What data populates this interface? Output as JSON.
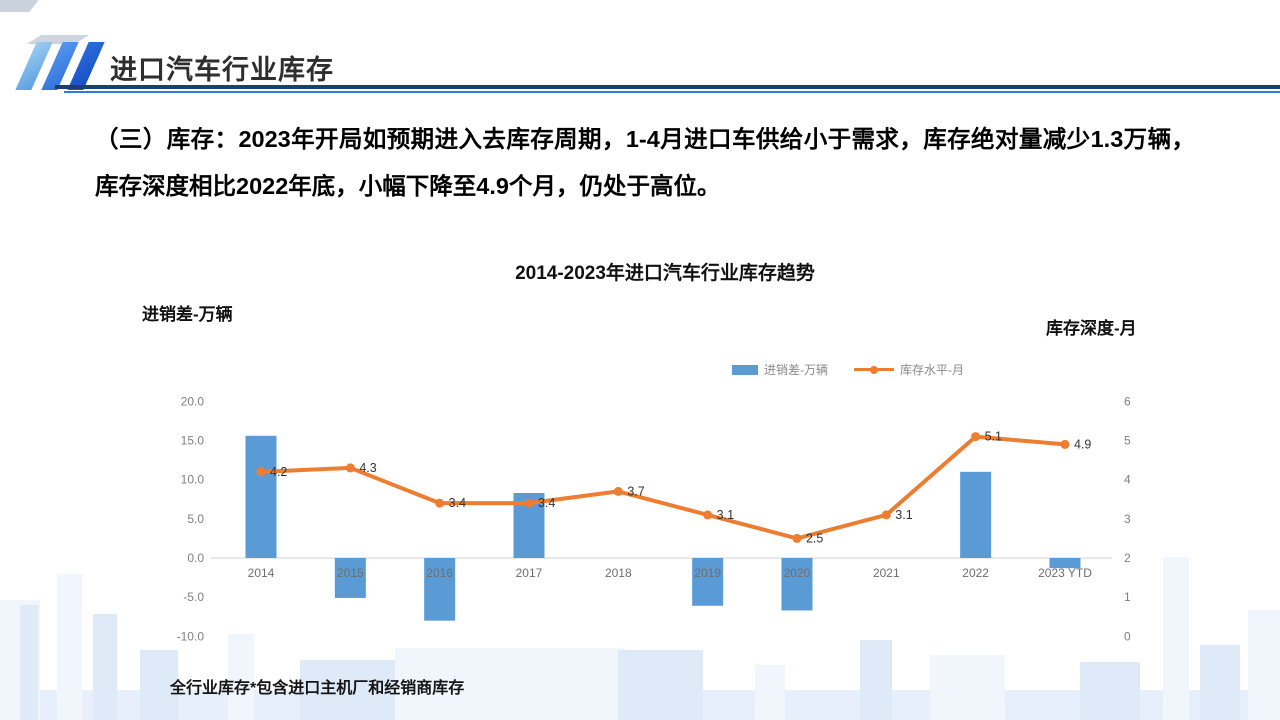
{
  "header": {
    "title": "进口汽车行业库存"
  },
  "paragraph": {
    "text": "（三）库存：2023年开局如预期进入去库存周期，1-4月进口车供给小于需求，库存绝对量减少1.3万辆，库存深度相比2022年底，小幅下降至4.9个月，仍处于高位。"
  },
  "footnote": {
    "text": "全行业库存*包含进口主机厂和经销商库存"
  },
  "chart_data": {
    "type": "combo-bar-line",
    "title": "2014-2023年进口汽车行业库存趋势",
    "categories": [
      "2014",
      "2015",
      "2016",
      "2017",
      "2018",
      "2019",
      "2020",
      "2021",
      "2022",
      "2023 YTD"
    ],
    "series": [
      {
        "name": "进销差-万辆",
        "type": "bar",
        "axis": "left",
        "color": "#5B9BD5",
        "values": [
          15.6,
          -5.1,
          -8.0,
          8.3,
          0,
          -6.1,
          -6.7,
          0,
          11.0,
          -1.3
        ]
      },
      {
        "name": "库存水平-月",
        "type": "line",
        "axis": "right",
        "color": "#ED7D31",
        "values": [
          4.2,
          4.3,
          3.4,
          3.4,
          3.7,
          3.1,
          2.5,
          3.1,
          5.1,
          4.9
        ],
        "data_labels": [
          "4.2",
          "4.3",
          "3.4",
          "3.4",
          "3.7",
          "3.1",
          "2.5",
          "3.1",
          "5.1",
          "4.9"
        ]
      }
    ],
    "left_axis": {
      "label": "进销差-万辆",
      "min": -10,
      "max": 20,
      "ticks": [
        "20.0",
        "15.0",
        "10.0",
        "5.0",
        "0.0",
        "-5.0",
        "-10.0"
      ]
    },
    "right_axis": {
      "label": "库存深度-月",
      "min": 0,
      "max": 6,
      "ticks": [
        "6",
        "5",
        "4",
        "3",
        "2",
        "1",
        "0"
      ]
    },
    "legend": [
      {
        "label": "进销差-万辆",
        "color": "#5B9BD5",
        "marker": "rect"
      },
      {
        "label": "库存水平-月",
        "color": "#ED7D31",
        "marker": "line-dot"
      }
    ],
    "legend_position": "top-center",
    "grid": "zero-line-only",
    "colors": {
      "bar": "#5B9BD5",
      "line": "#ED7D31",
      "axis_text": "#7f7f7f",
      "zero_line": "#d9d9d9",
      "data_label": "#333333"
    }
  }
}
